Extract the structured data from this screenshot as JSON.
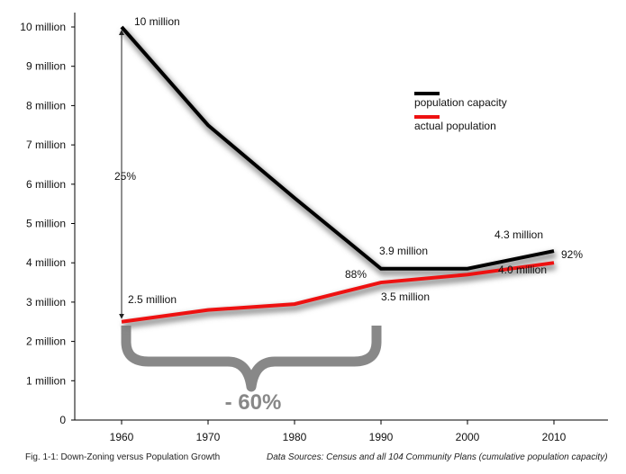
{
  "chart_data": {
    "type": "line",
    "x": [
      1960,
      1970,
      1980,
      1990,
      2000,
      2010
    ],
    "ylim": [
      0,
      10
    ],
    "yticks": [
      {
        "v": 0,
        "label": "0"
      },
      {
        "v": 1,
        "label": "1 million"
      },
      {
        "v": 2,
        "label": "2 million"
      },
      {
        "v": 3,
        "label": "3 million"
      },
      {
        "v": 4,
        "label": "4 million"
      },
      {
        "v": 5,
        "label": "5 million"
      },
      {
        "v": 6,
        "label": "6 million"
      },
      {
        "v": 7,
        "label": "7 million"
      },
      {
        "v": 8,
        "label": "8 million"
      },
      {
        "v": 9,
        "label": "9 million"
      },
      {
        "v": 10,
        "label": "10 million"
      }
    ],
    "xticks": [
      "1960",
      "1970",
      "1980",
      "1990",
      "2000",
      "2010"
    ],
    "series": [
      {
        "name": "population capacity",
        "color": "#000000",
        "values": [
          10.0,
          7.5,
          5.65,
          3.85,
          3.85,
          4.3
        ]
      },
      {
        "name": "actual population",
        "color": "#ee1111",
        "values": [
          2.5,
          2.8,
          2.95,
          3.5,
          3.7,
          4.0
        ]
      }
    ],
    "point_labels": [
      {
        "text": "10 million",
        "series": 0,
        "index": 0
      },
      {
        "text": "3.9 million",
        "series": 0,
        "index": 3
      },
      {
        "text": "4.3 million",
        "series": 0,
        "index": 5
      },
      {
        "text": "2.5 million",
        "series": 1,
        "index": 0
      },
      {
        "text": "3.5 million",
        "series": 1,
        "index": 3
      },
      {
        "text": "4.0 million",
        "series": 1,
        "index": 5
      }
    ],
    "annotations": {
      "pct_1960": "25%",
      "pct_1990": "88%",
      "pct_2010": "92%",
      "brace_label": "- 60%",
      "brace_color": "#888888"
    },
    "legend_position": "top-right",
    "grid": false
  },
  "caption": {
    "left": "Fig. 1-1: Down-Zoning versus Population Growth",
    "right": "Data Sources: Census and all 104 Community Plans (cumulative population capacity)"
  }
}
